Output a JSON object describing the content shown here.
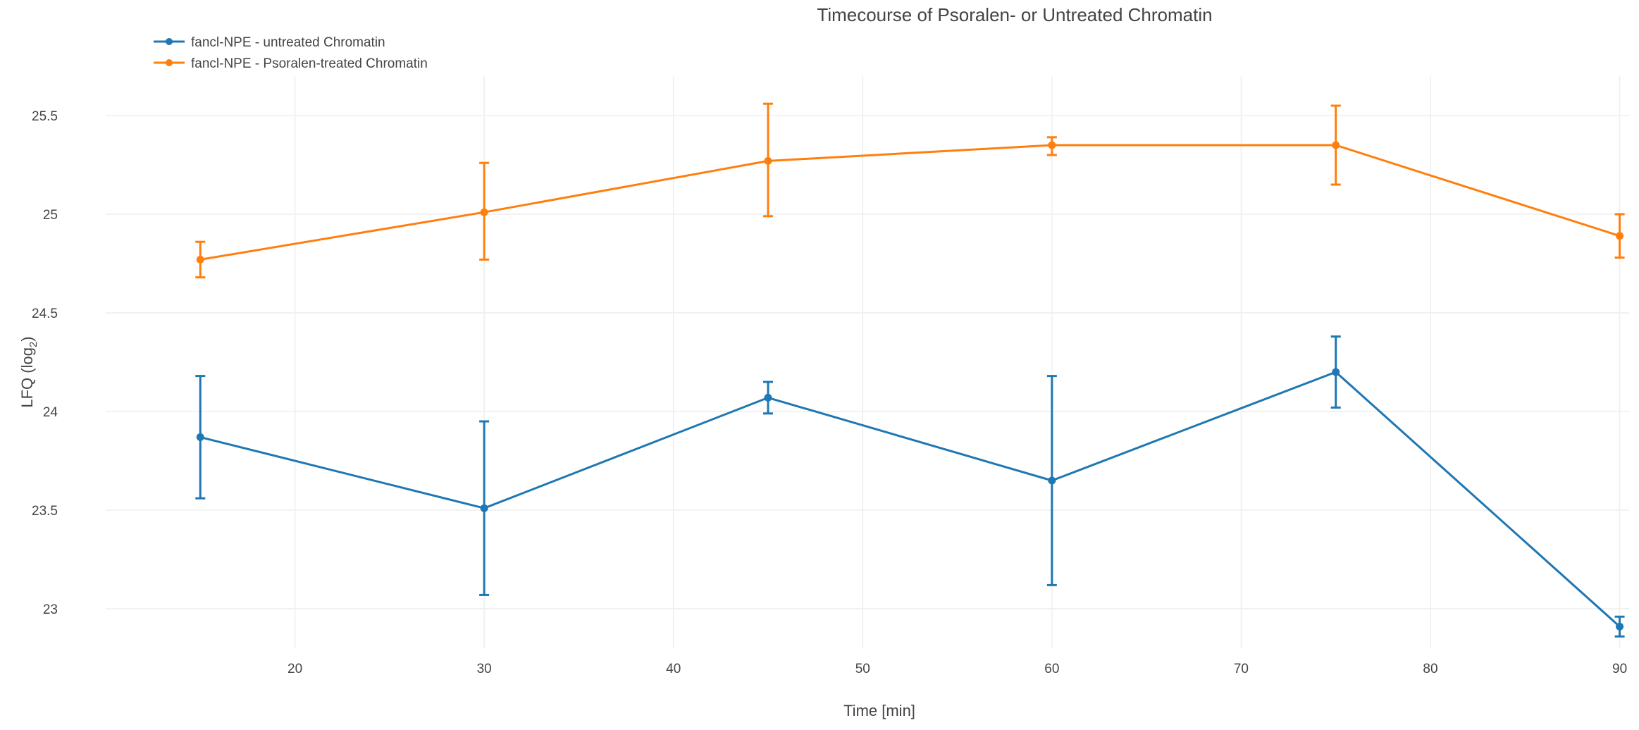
{
  "chart_data": {
    "type": "line",
    "title": "Timecourse of Psoralen- or Untreated Chromatin",
    "xlabel": "Time [min]",
    "ylabel_main": "LFQ (log",
    "ylabel_sub": "2",
    "ylabel_close": ")",
    "xlim": [
      10,
      90.5
    ],
    "ylim": [
      22.8,
      25.7
    ],
    "x_ticks": [
      20,
      30,
      40,
      50,
      60,
      70,
      80,
      90
    ],
    "y_ticks": [
      23,
      23.5,
      24,
      24.5,
      25,
      25.5
    ],
    "y_tick_labels": [
      "23",
      "23.5",
      "24",
      "24.5",
      "25",
      "25.5"
    ],
    "grid": true,
    "legend_position": "top-left",
    "x": [
      15,
      30,
      45,
      60,
      75,
      90
    ],
    "series": [
      {
        "name": "fancl-NPE - untreated Chromatin",
        "color": "#1f77b4",
        "values": [
          23.87,
          23.51,
          24.07,
          23.65,
          24.2,
          22.91
        ],
        "error_upper": [
          24.18,
          23.95,
          24.15,
          24.18,
          24.38,
          22.96
        ],
        "error_lower": [
          23.56,
          23.07,
          23.99,
          23.12,
          24.02,
          22.86
        ]
      },
      {
        "name": "fancl-NPE - Psoralen-treated Chromatin",
        "color": "#ff7f0e",
        "values": [
          24.77,
          25.01,
          25.27,
          25.35,
          25.35,
          24.89
        ],
        "error_upper": [
          24.86,
          25.26,
          25.56,
          25.39,
          25.55,
          25.0
        ],
        "error_lower": [
          24.68,
          24.77,
          24.99,
          25.3,
          25.15,
          24.78
        ]
      }
    ]
  }
}
